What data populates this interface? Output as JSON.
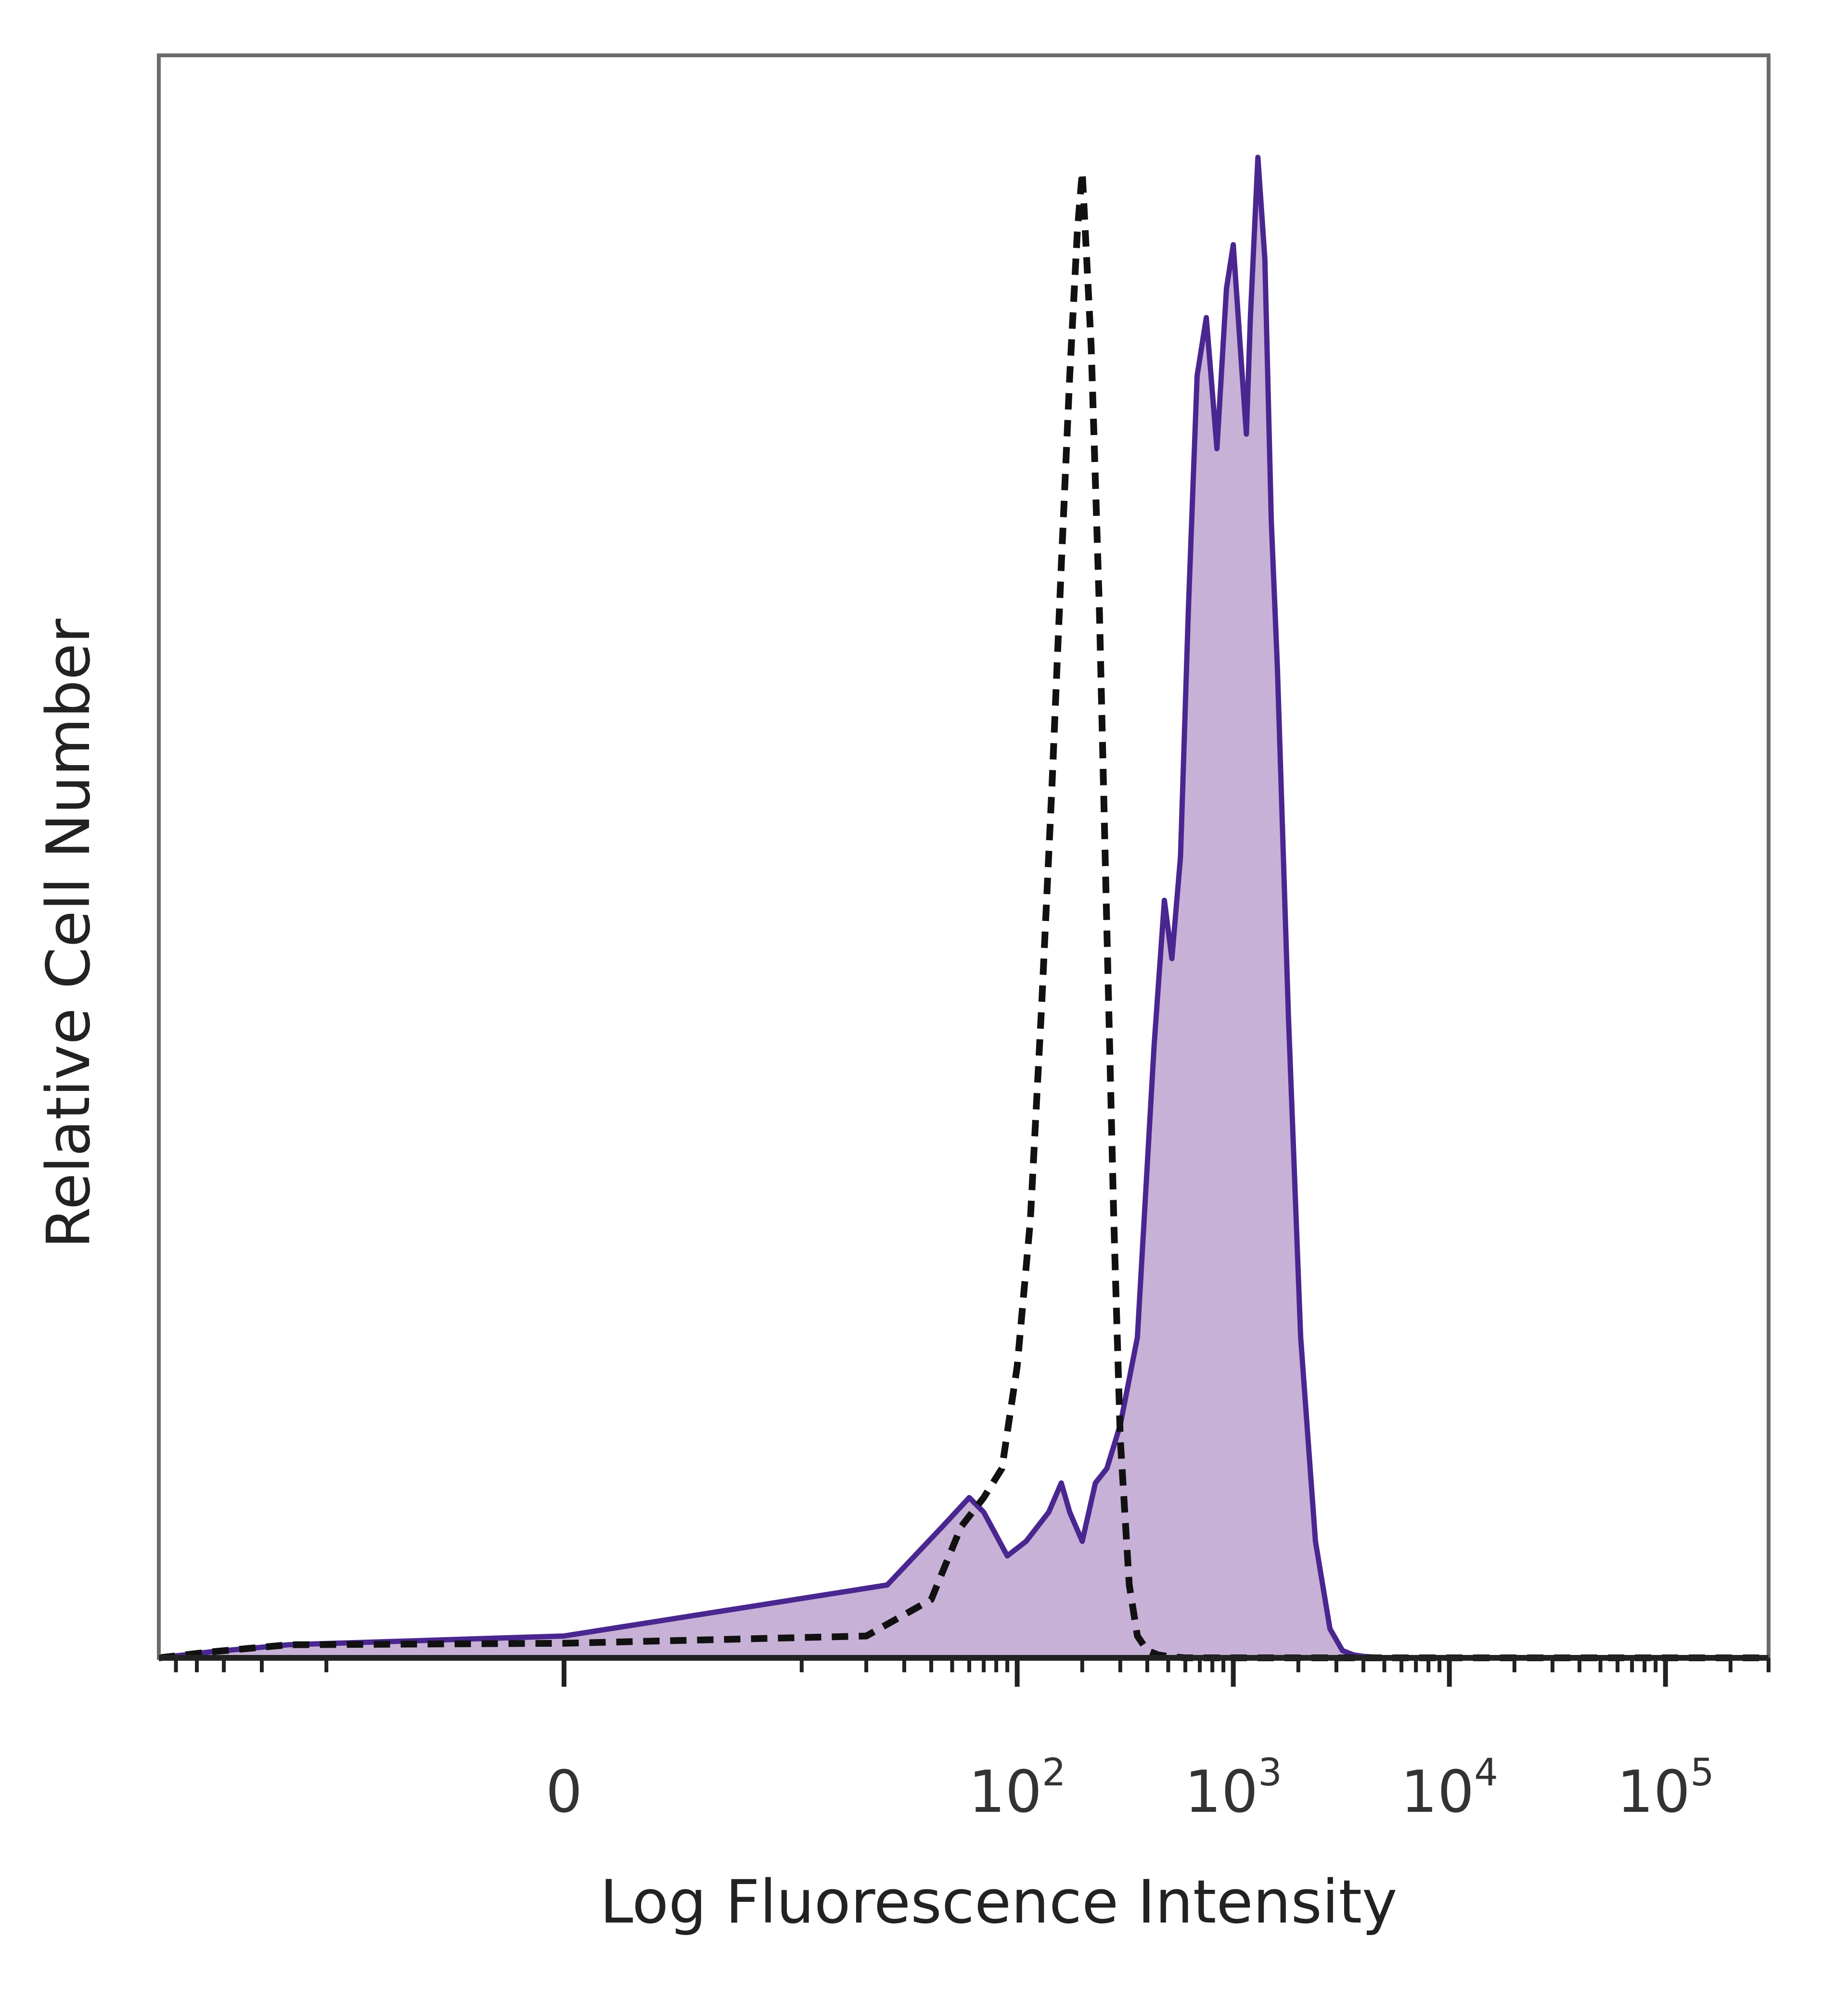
{
  "chart_data": {
    "type": "area",
    "xlabel": "Log Fluorescence Intensity",
    "ylabel": "Relative Cell Number",
    "x_scale": "biexponential",
    "xlim": [
      -60,
      300000
    ],
    "ylim": [
      0,
      110
    ],
    "x_ticks": [
      {
        "base": "0",
        "exp": "",
        "value": 0
      },
      {
        "base": "10",
        "exp": "2",
        "value": 100
      },
      {
        "base": "10",
        "exp": "3",
        "value": 1000
      },
      {
        "base": "10",
        "exp": "4",
        "value": 10000
      },
      {
        "base": "10",
        "exp": "5",
        "value": 100000
      }
    ],
    "grid": false,
    "legend": "none",
    "series": [
      {
        "style": "filled",
        "fill": "#c7b1d6",
        "line": "#4a2690",
        "x": [
          -60,
          -35,
          -15,
          0,
          25,
          45,
          60,
          70,
          90,
          110,
          140,
          160,
          175,
          200,
          230,
          260,
          300,
          360,
          430,
          480,
          520,
          570,
          620,
          680,
          750,
          840,
          930,
          1000,
          1100,
          1150,
          1200,
          1300,
          1400,
          1500,
          1600,
          1800,
          2050,
          2400,
          2800,
          3200,
          3600,
          4000,
          5000,
          10000,
          30000,
          100000,
          300000
        ],
        "y": [
          0,
          0.4,
          0.9,
          1.5,
          5,
          9,
          11,
          10,
          7,
          8,
          10,
          12,
          10,
          8,
          12,
          13,
          16,
          22,
          42,
          52,
          48,
          55,
          72,
          88,
          92,
          83,
          94,
          97,
          88,
          84,
          92,
          103,
          96,
          78,
          68,
          44,
          22,
          8,
          2,
          0.5,
          0.2,
          0.1,
          0,
          0,
          0,
          0,
          0
        ]
      },
      {
        "style": "dashed",
        "line": "#111111",
        "x": [
          -60,
          -35,
          -15,
          0,
          20,
          40,
          55,
          70,
          85,
          100,
          115,
          130,
          145,
          160,
          175,
          190,
          200,
          220,
          240,
          260,
          280,
          300,
          330,
          360,
          400,
          450,
          500,
          600,
          800,
          1000,
          3000,
          10000,
          100000,
          300000
        ],
        "y": [
          0,
          0.4,
          0.9,
          1,
          1.5,
          4,
          9,
          11,
          13,
          20,
          30,
          45,
          60,
          75,
          88,
          98,
          102,
          90,
          72,
          50,
          30,
          15,
          5,
          1.5,
          0.5,
          0.2,
          0.1,
          0,
          0,
          0,
          0,
          0,
          0,
          0
        ]
      }
    ]
  }
}
